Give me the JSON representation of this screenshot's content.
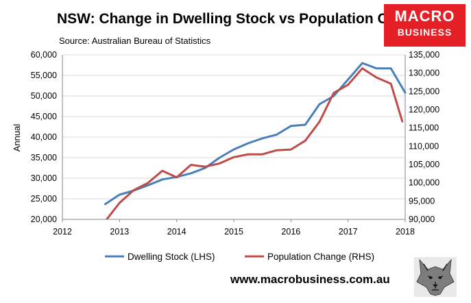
{
  "header": {
    "title": "NSW: Change in Dwelling Stock vs Population Change",
    "source": "Source: Australian Bureau of Statistics"
  },
  "logo": {
    "line1": "MACRO",
    "line2": "BUSINESS"
  },
  "footer": {
    "url": "www.macrobusiness.com.au"
  },
  "chart_data": {
    "type": "line",
    "title": "NSW: Change in Dwelling Stock vs Population Change",
    "subtitle": "Source: Australian Bureau of Statistics",
    "xlabel": "",
    "ylabel": "Annual",
    "y2label": "",
    "xlim": [
      2012,
      2018
    ],
    "ylim": [
      20000,
      60000
    ],
    "y2lim": [
      90000,
      135000
    ],
    "x_ticks": [
      "2012",
      "2013",
      "2014",
      "2015",
      "2016",
      "2017",
      "2018"
    ],
    "y_ticks": [
      "20,000",
      "25,000",
      "30,000",
      "35,000",
      "40,000",
      "45,000",
      "50,000",
      "55,000",
      "60,000"
    ],
    "y2_ticks": [
      "90,000",
      "95,000",
      "100,000",
      "105,000",
      "110,000",
      "115,000",
      "120,000",
      "125,000",
      "130,000",
      "135,000"
    ],
    "grid": "horizontal",
    "legend_position": "bottom",
    "series": [
      {
        "name": "Dwelling Stock (LHS)",
        "axis": "left",
        "color": "#4a7ebb",
        "x": [
          2012.75,
          2013.0,
          2013.25,
          2013.5,
          2013.75,
          2014.0,
          2014.25,
          2014.5,
          2014.75,
          2015.0,
          2015.25,
          2015.5,
          2015.75,
          2016.0,
          2016.25,
          2016.5,
          2016.75,
          2017.0,
          2017.25,
          2017.5,
          2017.75,
          2018.0
        ],
        "values": [
          23700,
          26000,
          27000,
          28300,
          29700,
          30300,
          31200,
          32500,
          35000,
          37000,
          38500,
          39700,
          40600,
          42700,
          43000,
          48000,
          50000,
          54000,
          58000,
          56700,
          56700,
          50800
        ]
      },
      {
        "name": "Population Change (RHS)",
        "axis": "right",
        "color": "#be4b48",
        "x": [
          2012.75,
          2013.0,
          2013.25,
          2013.5,
          2013.75,
          2014.0,
          2014.25,
          2014.5,
          2014.75,
          2015.0,
          2015.25,
          2015.5,
          2015.75,
          2016.0,
          2016.25,
          2016.5,
          2016.75,
          2017.0,
          2017.25,
          2017.5,
          2017.75,
          2017.95
        ],
        "values": [
          89500,
          94500,
          98000,
          100000,
          103300,
          101500,
          104900,
          104400,
          105300,
          107000,
          107800,
          107800,
          108900,
          109100,
          111500,
          116700,
          124600,
          126800,
          131300,
          128800,
          127100,
          116800
        ]
      }
    ]
  }
}
